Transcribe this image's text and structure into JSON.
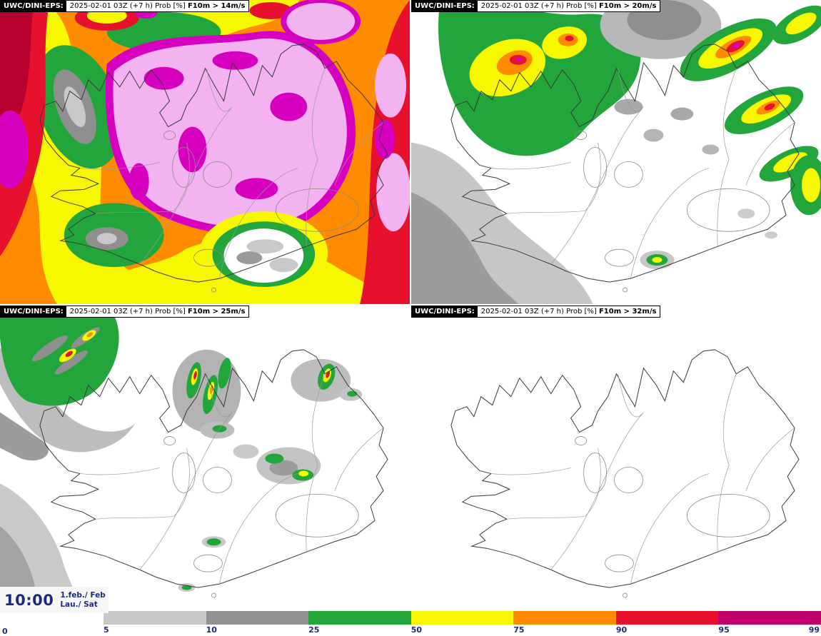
{
  "panels": [
    {
      "product": "UWC/DINI-EPS:",
      "run": "2025-02-01 03Z",
      "lead": "(+7 h)",
      "quantity": "Prob [%]",
      "threshold": "F10m > 14m/s"
    },
    {
      "product": "UWC/DINI-EPS:",
      "run": "2025-02-01 03Z",
      "lead": "(+7 h)",
      "quantity": "Prob [%]",
      "threshold": "F10m > 20m/s"
    },
    {
      "product": "UWC/DINI-EPS:",
      "run": "2025-02-01 03Z",
      "lead": "(+7 h)",
      "quantity": "Prob [%]",
      "threshold": "F10m > 25m/s"
    },
    {
      "product": "UWC/DINI-EPS:",
      "run": "2025-02-01 03Z",
      "lead": "(+7 h)",
      "quantity": "Prob [%]",
      "threshold": "F10m > 32m/s"
    }
  ],
  "stamp": {
    "time": "10:00",
    "date": "1.feb./ Feb",
    "day": "Lau./ Sat"
  },
  "colorbar": {
    "zero_label": "0",
    "ticks": [
      "5",
      "10",
      "25",
      "50",
      "75",
      "90",
      "95",
      "99"
    ],
    "segments": [
      {
        "range": "5-10",
        "color": "#c8c8c8"
      },
      {
        "range": "10-25",
        "color": "#919191"
      },
      {
        "range": "25-50",
        "color": "#22a63c"
      },
      {
        "range": "50-75",
        "color": "#f7f700"
      },
      {
        "range": "75-90",
        "color": "#ff8c00"
      },
      {
        "range": "90-95",
        "color": "#e8112d"
      },
      {
        "range": "95-99",
        "color": "#c0006b"
      }
    ]
  },
  "palette": {
    "label_navy": "#1c2a7e",
    "coast": "#3a3a3a",
    "title_bg": "#000000",
    "title_fg": "#ffffff",
    "extreme_magenta": "#d800c0",
    "extreme_pink": "#f2b3f0"
  }
}
